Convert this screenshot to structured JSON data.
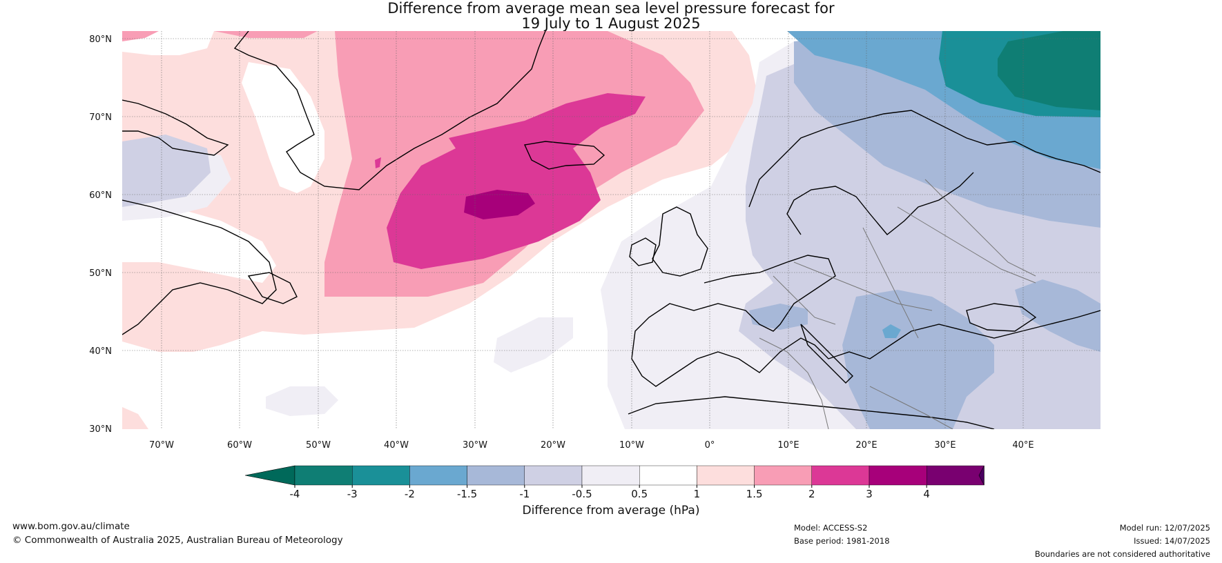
{
  "title": {
    "line1": "Difference from average mean sea level pressure forecast for",
    "line2": "19 July to 1 August 2025"
  },
  "map": {
    "lat_labels": [
      "80°N",
      "70°N",
      "60°N",
      "50°N",
      "40°N",
      "30°N"
    ],
    "lon_labels": [
      "70°W",
      "60°W",
      "50°W",
      "40°W",
      "30°W",
      "20°W",
      "10°W",
      "0°",
      "10°E",
      "20°E",
      "30°E",
      "40°E"
    ],
    "colors": {
      "ocean_neutral": "#ffffff",
      "coast": "#000000",
      "borders": "#777777",
      "grid": "#666666"
    }
  },
  "colorbar": {
    "label": "Difference from average (hPa)",
    "ticks": [
      "-4",
      "-3",
      "-2",
      "-1.5",
      "-1",
      "-0.5",
      "0.5",
      "1",
      "1.5",
      "2",
      "3",
      "4"
    ],
    "bins": [
      "#0f7e74",
      "#1a9098",
      "#6aa8d0",
      "#a7b8d8",
      "#cfd0e4",
      "#f0eef5",
      "#ffffff",
      "#fddedd",
      "#f89db5",
      "#dc3896",
      "#a7007a",
      "#790070"
    ],
    "extend_low": "#00695a",
    "extend_high": "#4a0060"
  },
  "footer": {
    "website": "www.bom.gov.au/climate",
    "copyright": "© Commonwealth of Australia 2025, Australian Bureau of Meteorology",
    "model": "Model: ACCESS-S2",
    "base_period": "Base period: 1981-2018",
    "model_run": "Model run: 12/07/2025",
    "issued": "Issued: 14/07/2025",
    "disclaimer": "Boundaries are not considered authoritative"
  }
}
